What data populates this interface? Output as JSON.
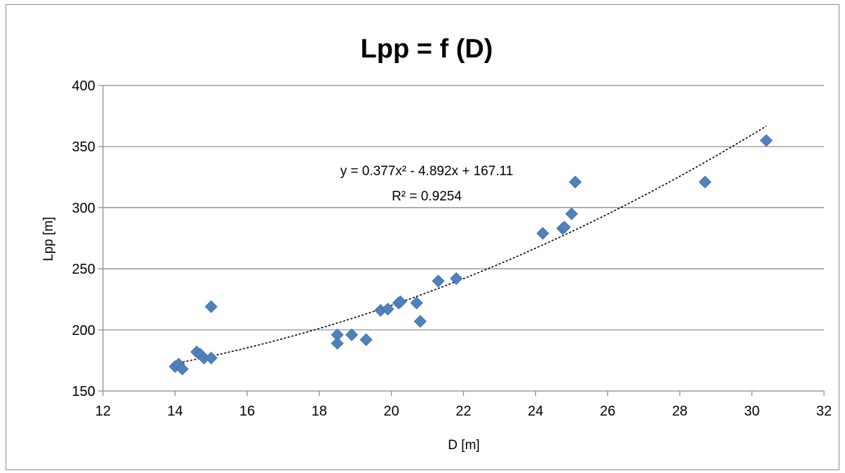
{
  "chart_data": {
    "type": "scatter",
    "title": "Lpp = f (D)",
    "xlabel": "D [m]",
    "ylabel": "Lpp [m]",
    "xlim": [
      12,
      32
    ],
    "ylim": [
      150,
      400
    ],
    "x_ticks": [
      12,
      14,
      16,
      18,
      20,
      22,
      24,
      26,
      28,
      30,
      32
    ],
    "y_ticks": [
      150,
      200,
      250,
      300,
      350,
      400
    ],
    "grid": "horizontal",
    "legend": "none",
    "marker": "diamond",
    "marker_color": "#4f81bd",
    "gridline_color": "#868686",
    "series": [
      {
        "points": [
          [
            14.0,
            170
          ],
          [
            14.1,
            172
          ],
          [
            14.2,
            168
          ],
          [
            14.6,
            182
          ],
          [
            14.7,
            180
          ],
          [
            14.8,
            177
          ],
          [
            15.0,
            177
          ],
          [
            15.0,
            219
          ],
          [
            18.5,
            196
          ],
          [
            18.5,
            189
          ],
          [
            18.9,
            196
          ],
          [
            19.3,
            192
          ],
          [
            19.7,
            216
          ],
          [
            19.9,
            217
          ],
          [
            20.2,
            222
          ],
          [
            20.25,
            223
          ],
          [
            20.7,
            222
          ],
          [
            20.8,
            207
          ],
          [
            21.3,
            240
          ],
          [
            21.8,
            242
          ],
          [
            24.2,
            279
          ],
          [
            24.75,
            283
          ],
          [
            24.8,
            284
          ],
          [
            25.0,
            295
          ],
          [
            25.1,
            321
          ],
          [
            28.7,
            321
          ],
          [
            30.4,
            355
          ]
        ]
      }
    ],
    "trendline": {
      "kind": "polynomial-2",
      "coefficients": [
        0.377,
        -4.892,
        167.11
      ],
      "x_range": [
        14.0,
        30.4
      ],
      "style": "dotted",
      "color": "#000000"
    },
    "annotations": {
      "equation": "y = 0.377x² - 4.892x + 167.11",
      "r_squared": "R² = 0.9254"
    }
  }
}
